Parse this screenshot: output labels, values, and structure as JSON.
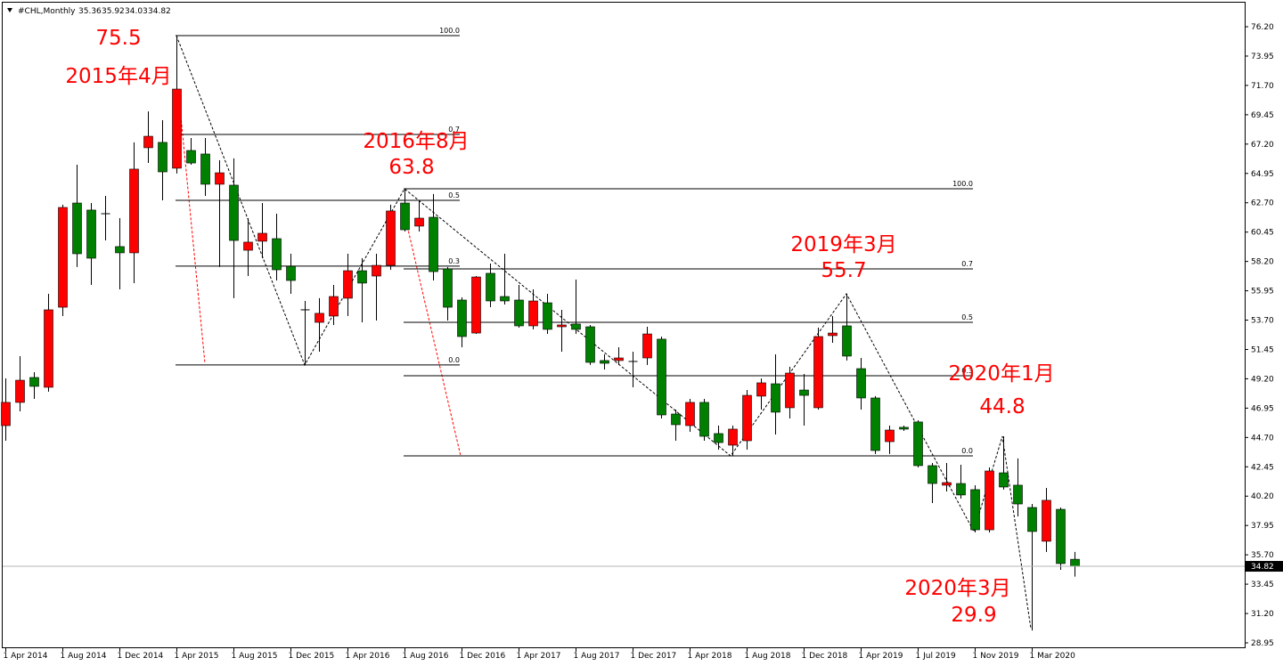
{
  "chart_data": {
    "type": "candlestick",
    "symbol": "#CHL,Monthly",
    "categories": [
      "1 Apr 2014",
      null,
      null,
      null,
      "1 Aug 2014",
      null,
      null,
      null,
      "1 Dec 2014",
      null,
      null,
      null,
      "1 Apr 2015",
      null,
      null,
      null,
      "1 Aug 2015",
      null,
      null,
      null,
      "1 Dec 2015",
      null,
      null,
      null,
      "1 Apr 2016",
      null,
      null,
      null,
      "1 Aug 2016",
      null,
      null,
      null,
      "1 Dec 2016",
      null,
      null,
      null,
      "1 Apr 2017",
      null,
      null,
      null,
      "1 Aug 2017",
      null,
      null,
      null,
      "1 Dec 2017",
      null,
      null,
      null,
      "1 Apr 2018",
      null,
      null,
      null,
      "1 Aug 2018",
      null,
      null,
      null,
      "1 Dec 2018",
      null,
      null,
      null,
      "1 Apr 2019",
      null,
      null,
      null,
      "1 Jul 2019",
      null,
      null,
      null,
      "1 Nov 2019",
      null,
      null,
      null,
      "1 Mar 2020",
      null,
      null,
      null
    ],
    "open": [
      45.61,
      47.39,
      49.3,
      48.55,
      54.69,
      62.68,
      62.14,
      61.86,
      59.34,
      58.86,
      66.92,
      67.33,
      65.35,
      66.71,
      66.44,
      64.12,
      64.05,
      59.06,
      59.75,
      59.95,
      57.83,
      54.49,
      53.53,
      54.01,
      55.38,
      57.49,
      57.08,
      57.9,
      62.68,
      60.91,
      61.59,
      57.63,
      55.24,
      52.71,
      57.29,
      55.51,
      55.24,
      53.26,
      55.03,
      53.19,
      53.4,
      53.19,
      50.6,
      50.6,
      50.53,
      50.8,
      52.24,
      46.5,
      45.61,
      47.39,
      45.0,
      44.11,
      44.45,
      47.87,
      48.82,
      46.98,
      48.34,
      46.98,
      52.51,
      53.26,
      49.98,
      47.73,
      44.38,
      45.48,
      45.89,
      42.54,
      41.04,
      41.17,
      40.7,
      37.62,
      41.99,
      41.04,
      39.33,
      36.74,
      39.19,
      35.36
    ],
    "high": [
      49.23,
      50.94,
      49.71,
      55.72,
      62.55,
      65.62,
      62.68,
      63.23,
      61.52,
      67.33,
      69.71,
      69.03,
      75.52,
      67.67,
      67.67,
      65.96,
      66.1,
      61.52,
      62.68,
      61.86,
      58.79,
      55.17,
      55.38,
      56.4,
      58.79,
      58.45,
      58.79,
      62.55,
      63.77,
      62.89,
      63.37,
      57.77,
      55.44,
      57.08,
      58.04,
      58.79,
      56.4,
      56.06,
      55.72,
      54.49,
      56.81,
      53.33,
      51.07,
      51.62,
      51.28,
      53.19,
      52.44,
      46.84,
      47.66,
      47.66,
      45.61,
      45.61,
      48.34,
      49.23,
      51.07,
      50.12,
      49.57,
      53.12,
      54.01,
      55.72,
      50.8,
      47.87,
      45.61,
      45.61,
      46.02,
      42.74,
      42.74,
      42.61,
      41.04,
      42.4,
      44.79,
      43.09,
      39.6,
      40.83,
      39.33,
      35.92
    ],
    "low": [
      44.45,
      46.7,
      47.66,
      48.21,
      54.01,
      57.77,
      56.4,
      59.81,
      56.06,
      56.54,
      65.75,
      62.89,
      64.94,
      65.62,
      63.23,
      57.77,
      55.38,
      57.08,
      58.45,
      56.74,
      55.72,
      50.26,
      51.28,
      53.33,
      54.01,
      53.53,
      53.67,
      57.56,
      60.5,
      60.5,
      56.74,
      53.67,
      51.62,
      52.64,
      54.69,
      54.9,
      53.12,
      52.99,
      52.64,
      51.28,
      52.64,
      50.26,
      49.91,
      50.26,
      48.55,
      50.26,
      46.16,
      44.45,
      45.13,
      44.45,
      43.77,
      43.29,
      43.77,
      46.84,
      44.93,
      46.16,
      45.61,
      46.84,
      51.96,
      50.6,
      46.84,
      43.43,
      43.43,
      45.2,
      42.4,
      39.67,
      40.56,
      40.01,
      37.42,
      37.42,
      40.7,
      38.65,
      29.9,
      35.92,
      34.55,
      34.03
    ],
    "close": [
      47.39,
      49.09,
      48.62,
      54.49,
      62.34,
      58.79,
      58.45,
      61.86,
      58.86,
      65.28,
      67.8,
      65.07,
      71.42,
      65.75,
      64.12,
      65.0,
      59.81,
      59.68,
      60.36,
      57.56,
      56.74,
      54.49,
      54.22,
      55.51,
      57.49,
      56.54,
      57.9,
      62.07,
      60.63,
      61.52,
      57.42,
      54.69,
      52.44,
      57.01,
      55.17,
      55.17,
      53.26,
      55.17,
      52.99,
      53.33,
      52.99,
      50.46,
      50.39,
      50.8,
      50.53,
      52.64,
      46.43,
      45.68,
      47.39,
      44.79,
      44.31,
      45.34,
      47.93,
      48.89,
      46.64,
      49.64,
      47.93,
      52.44,
      52.71,
      50.94,
      47.73,
      43.7,
      45.27,
      45.34,
      42.54,
      41.17,
      41.24,
      40.29,
      37.62,
      42.13,
      40.9,
      39.6,
      37.49,
      39.88,
      35.03,
      34.82
    ],
    "up_color": "#ff0000",
    "down_color": "#008000",
    "ylim": [
      28.54,
      78.25
    ],
    "yticks": [
      {
        "value": 76.2,
        "label": "76.20"
      },
      73.95,
      {
        "value": 71.7,
        "label": "71.70"
      },
      69.45,
      {
        "value": 67.2,
        "label": "67.20"
      },
      64.95,
      {
        "value": 62.7,
        "label": "62.70"
      },
      60.45,
      {
        "value": 58.2,
        "label": "58.20"
      },
      55.95,
      {
        "value": 53.7,
        "label": "53.70"
      },
      51.45,
      {
        "value": 49.2,
        "label": "49.20"
      },
      46.95,
      {
        "value": 44.7,
        "label": "44.70"
      },
      42.45,
      {
        "value": 40.2,
        "label": "40.20"
      },
      37.95,
      {
        "value": 35.7,
        "label": "35.70"
      },
      33.45,
      {
        "value": 31.2,
        "label": "31.20"
      },
      28.95
    ],
    "fib_levels": [
      {
        "value": 1.0,
        "label": "100.0"
      },
      {
        "value": 0.7,
        "label": "0.7"
      },
      {
        "value": 0.5,
        "label": "0.5"
      },
      {
        "value": 0.3,
        "label": "0.3"
      },
      {
        "value": 0.0,
        "label": "0.0"
      }
    ],
    "annotations": [
      "75.5",
      "2015年4月",
      "2016年8月",
      "63.8",
      "2019年3月",
      "55.7",
      "2020年1月",
      "44.8",
      "2020年3月",
      "29.9"
    ]
  }
}
